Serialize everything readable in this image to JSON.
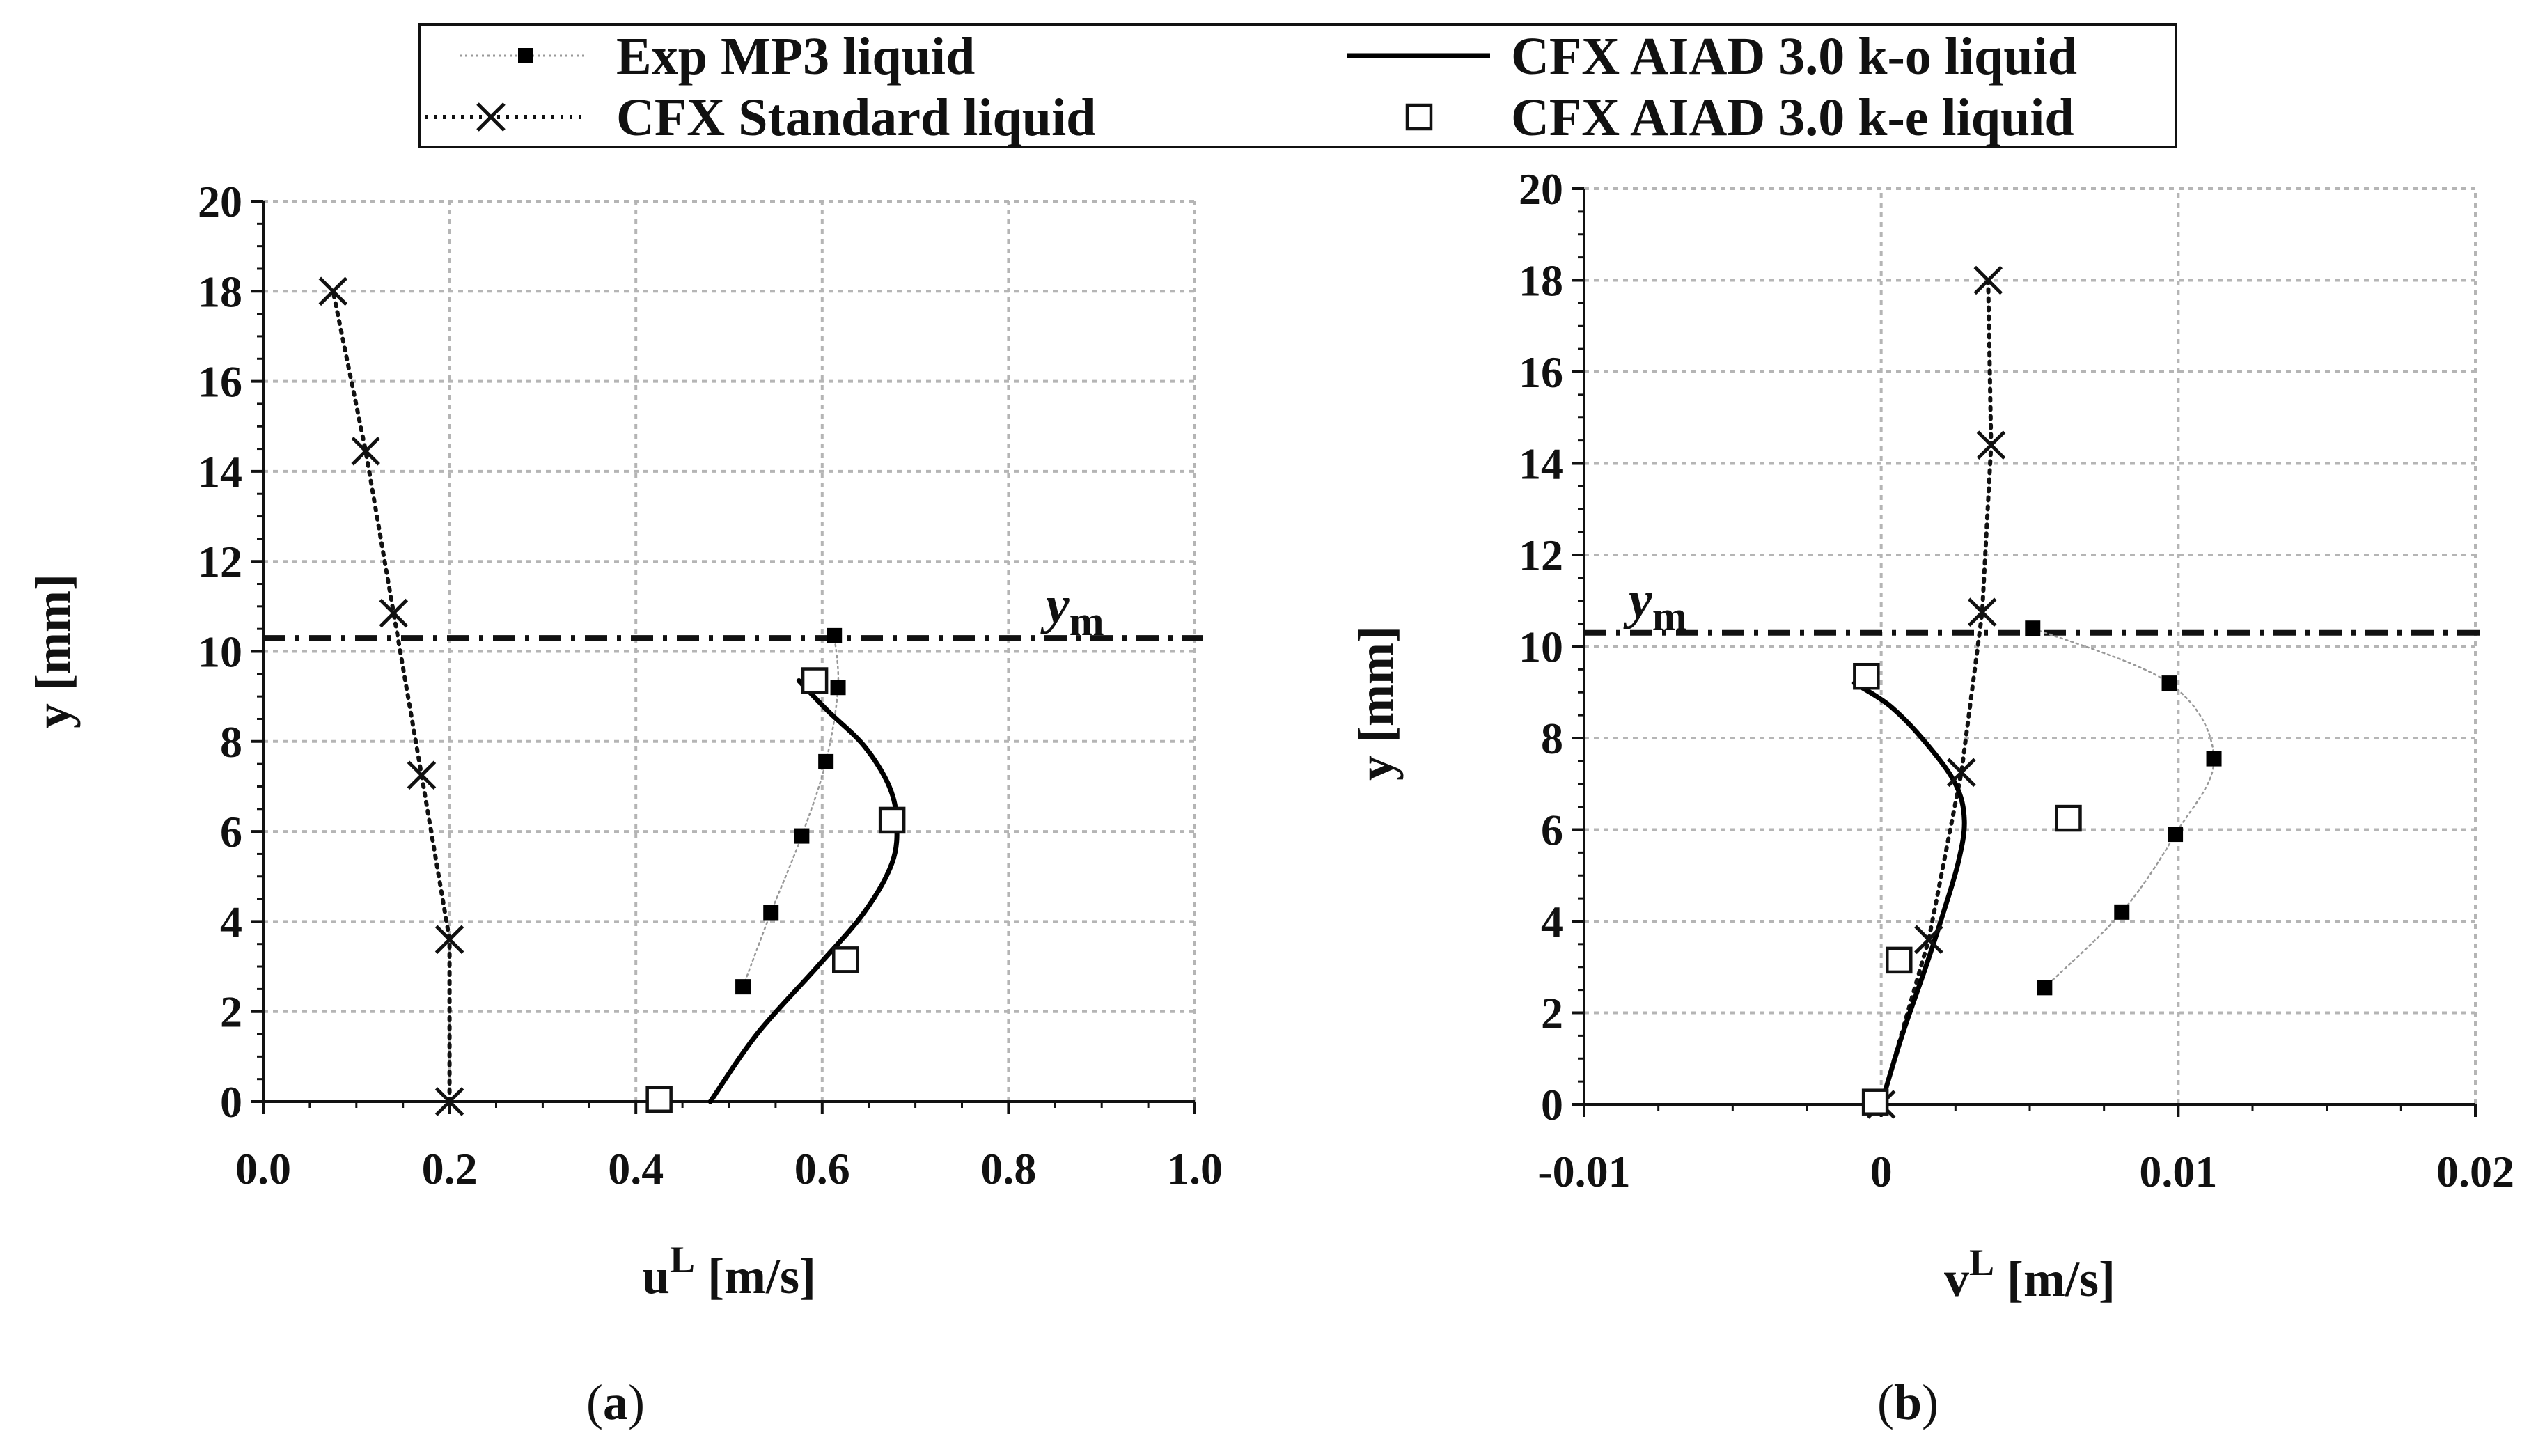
{
  "legend": {
    "items": [
      {
        "name": "legend-exp",
        "label": "Exp MP3 liquid",
        "style": "exp"
      },
      {
        "name": "legend-ko",
        "label": "CFX AIAD 3.0 k-o liquid",
        "style": "ko"
      },
      {
        "name": "legend-std",
        "label": "CFX Standard liquid",
        "style": "std"
      },
      {
        "name": "legend-ke",
        "label": "CFX AIAD 3.0 k-e liquid",
        "style": "ke"
      }
    ]
  },
  "chart_data": [
    {
      "type": "scatter",
      "panel_label": "(a)",
      "panel_letter": "a",
      "xlabel": "u",
      "xlabel_sup": "L",
      "xlabel_unit": "[m/s]",
      "ylabel": "y [mm]",
      "xlim": [
        0.0,
        1.0
      ],
      "ylim": [
        0,
        20
      ],
      "xticks": [
        0.0,
        0.2,
        0.4,
        0.6,
        0.8,
        1.0
      ],
      "xtick_labels": [
        "0.0",
        "0.2",
        "0.4",
        "0.6",
        "0.8",
        "1.0"
      ],
      "yticks": [
        0,
        2,
        4,
        6,
        8,
        10,
        12,
        14,
        16,
        18,
        20
      ],
      "ytick_labels": [
        "0",
        "2",
        "4",
        "6",
        "8",
        "10",
        "12",
        "14",
        "16",
        "18",
        "20"
      ],
      "grid": true,
      "reference_line": {
        "label": "y",
        "sub": "m",
        "y": 10.3,
        "label_x": 0.84
      },
      "series": [
        {
          "name": "Exp MP3 liquid",
          "style": "exp",
          "x": [
            0.515,
            0.545,
            0.578,
            0.604,
            0.617,
            0.613
          ],
          "y": [
            2.55,
            4.2,
            5.9,
            7.55,
            9.2,
            10.35
          ]
        },
        {
          "name": "CFX Standard liquid",
          "style": "std",
          "x": [
            0.2,
            0.2,
            0.17,
            0.14,
            0.11,
            0.075
          ],
          "y": [
            0,
            3.6,
            7.25,
            10.85,
            14.45,
            18.0
          ]
        },
        {
          "name": "CFX AIAD 3.0 k-o liquid",
          "style": "ko",
          "x": [
            0.48,
            0.53,
            0.595,
            0.645,
            0.675,
            0.68,
            0.672,
            0.645,
            0.605,
            0.575
          ],
          "y": [
            0,
            1.5,
            3.0,
            4.2,
            5.3,
            6.2,
            7.0,
            7.9,
            8.7,
            9.35
          ]
        },
        {
          "name": "CFX AIAD 3.0 k-e liquid",
          "style": "ke",
          "x": [
            0.425,
            0.625,
            0.675,
            0.592
          ],
          "y": [
            0.05,
            3.15,
            6.25,
            9.35
          ]
        }
      ]
    },
    {
      "type": "scatter",
      "panel_label": "(b)",
      "panel_letter": "b",
      "xlabel": "v",
      "xlabel_sup": "L",
      "xlabel_unit": "[m/s]",
      "ylabel": "y [mm]",
      "xlim": [
        -0.01,
        0.02
      ],
      "ylim": [
        0,
        20
      ],
      "xticks": [
        -0.01,
        0.0,
        0.01,
        0.02
      ],
      "xtick_labels": [
        "-0.01",
        "0",
        "0.01",
        "0.02"
      ],
      "yticks": [
        0,
        2,
        4,
        6,
        8,
        10,
        12,
        14,
        16,
        18,
        20
      ],
      "ytick_labels": [
        "0",
        "2",
        "4",
        "6",
        "8",
        "10",
        "12",
        "14",
        "16",
        "18",
        "20"
      ],
      "grid": true,
      "reference_line": {
        "label": "y",
        "sub": "m",
        "y": 10.3,
        "label_x": -0.0085
      },
      "series": [
        {
          "name": "Exp MP3 liquid",
          "style": "exp",
          "x": [
            0.0055,
            0.0081,
            0.0099,
            0.0112,
            0.0097,
            0.0051
          ],
          "y": [
            2.55,
            4.2,
            5.9,
            7.55,
            9.2,
            10.4
          ]
        },
        {
          "name": "CFX Standard liquid",
          "style": "std",
          "x": [
            0.0,
            0.0016,
            0.0027,
            0.0034,
            0.0037,
            0.0036
          ],
          "y": [
            0,
            3.6,
            7.25,
            10.75,
            14.4,
            18.0
          ]
        },
        {
          "name": "CFX AIAD 3.0 k-o liquid",
          "style": "ko",
          "x": [
            0.0,
            0.0007,
            0.0015,
            0.0021,
            0.0026,
            0.0028,
            0.0025,
            0.0015,
            0.0003,
            -0.0009
          ],
          "y": [
            0,
            1.5,
            3.0,
            4.2,
            5.3,
            6.2,
            7.0,
            7.9,
            8.7,
            9.2
          ]
        },
        {
          "name": "CFX AIAD 3.0 k-e liquid",
          "style": "ke",
          "x": [
            -0.0002,
            0.0006,
            0.0063,
            -0.0005
          ],
          "y": [
            0.05,
            3.15,
            6.25,
            9.35
          ]
        }
      ]
    }
  ]
}
